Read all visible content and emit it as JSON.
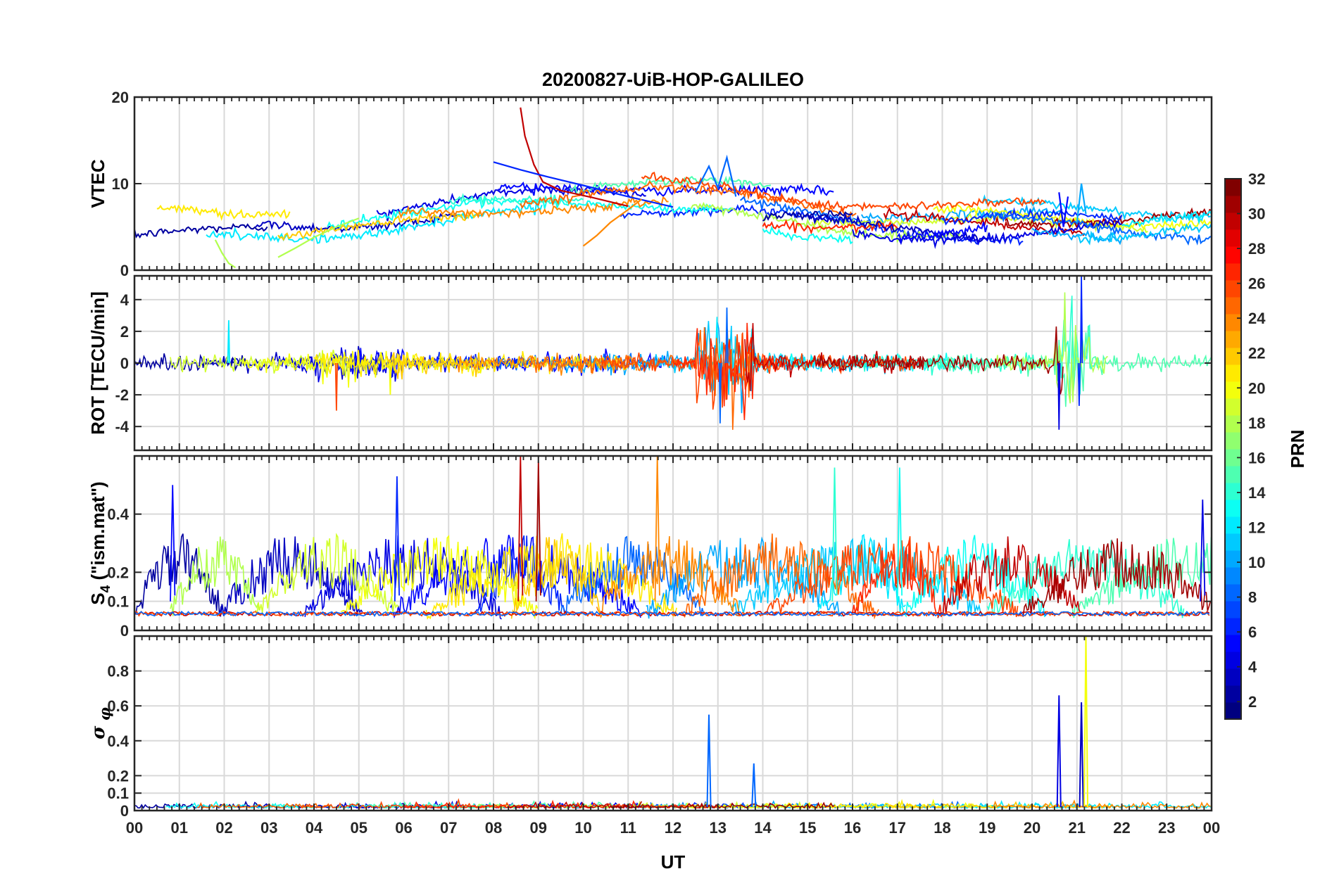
{
  "chart_data": {
    "type": "line",
    "title": "20200827-UiB-HOP-GALILEO",
    "xlabel": "UT",
    "x_ticks": [
      "00",
      "01",
      "02",
      "03",
      "04",
      "05",
      "06",
      "07",
      "08",
      "09",
      "10",
      "11",
      "12",
      "13",
      "14",
      "15",
      "16",
      "17",
      "18",
      "19",
      "20",
      "21",
      "22",
      "23",
      "00"
    ],
    "xlim": [
      0,
      24
    ],
    "colorbar": {
      "label": "PRN",
      "range": [
        1,
        32
      ],
      "ticks": [
        "2",
        "4",
        "6",
        "8",
        "10",
        "12",
        "14",
        "16",
        "18",
        "20",
        "22",
        "24",
        "26",
        "28",
        "30",
        "32"
      ],
      "colormap": "jet"
    },
    "panels": [
      {
        "name": "VTEC",
        "ylabel": "VTEC",
        "ylim": [
          0,
          20
        ],
        "y_ticks": [
          "0",
          "10",
          "20"
        ],
        "series_approx": [
          {
            "prn": 30,
            "x": [
              8.6,
              8.7,
              8.9,
              9.1,
              9.5,
              10.2,
              11.0
            ],
            "y": [
              18.8,
              15.5,
              12.2,
              10.2,
              9.2,
              8.4,
              7.4
            ]
          },
          {
            "prn": 6,
            "x": [
              8.0,
              8.6,
              9.2,
              10.0,
              11.0,
              12.0
            ],
            "y": [
              12.5,
              11.6,
              10.8,
              9.8,
              8.5,
              7.3
            ]
          },
          {
            "prn": 24,
            "x": [
              10.0,
              10.3,
              10.6,
              11.0,
              11.3
            ],
            "y": [
              2.8,
              4.0,
              5.5,
              7.0,
              8.2
            ]
          },
          {
            "prn": 18,
            "x": [
              1.8,
              1.95,
              2.1,
              2.25
            ],
            "y": [
              3.5,
              2.0,
              0.8,
              0.3
            ]
          },
          {
            "prn": 18,
            "x": [
              3.2,
              3.6,
              4.0,
              4.5,
              5.0
            ],
            "y": [
              1.5,
              2.6,
              3.8,
              5.0,
              6.0
            ]
          },
          {
            "prn": 8,
            "x": [
              12.5,
              12.8,
              13.0,
              13.2,
              13.4
            ],
            "y": [
              9.0,
              12.0,
              9.5,
              13.0,
              8.5
            ]
          },
          {
            "prn": 5,
            "x": [
              20.6,
              20.7,
              20.8
            ],
            "y": [
              9.0,
              5.0,
              8.5
            ]
          },
          {
            "prn": 10,
            "x": [
              21.0,
              21.1,
              21.2
            ],
            "y": [
              5.5,
              10.0,
              6.5
            ]
          }
        ]
      },
      {
        "name": "ROT",
        "ylabel": "ROT [TECU/min]",
        "ylim": [
          -5.5,
          5.5
        ],
        "y_ticks": [
          "-4",
          "-2",
          "0",
          "2",
          "4"
        ],
        "notes": "noisy fluctuations around 0; spikes near 13 UT (±3.5) and 20.5-21.2 UT (-4.2 to 5.5)"
      },
      {
        "name": "S4",
        "ylabel": "S_4 (\"ism.mat\")",
        "ylim": [
          0,
          0.6
        ],
        "y_ticks": [
          "0",
          "0.1",
          "0.2",
          "0.4"
        ],
        "notes": "background near 0.05-0.1 with bursts up to ~0.6 around 8.5-9 UT and 11.6 UT"
      },
      {
        "name": "sigma_phi",
        "ylabel": "σ_φ",
        "ylim": [
          0,
          1.0
        ],
        "y_ticks": [
          "0",
          "0.1",
          "0.2",
          "0.4",
          "0.6",
          "0.8"
        ],
        "peaks": [
          {
            "x": 12.8,
            "y": 0.55,
            "prn": 8
          },
          {
            "x": 13.8,
            "y": 0.27,
            "prn": 8
          },
          {
            "x": 20.6,
            "y": 0.66,
            "prn": 4
          },
          {
            "x": 21.1,
            "y": 0.62,
            "prn": 3
          },
          {
            "x": 21.2,
            "y": 1.0,
            "prn": 20
          }
        ]
      }
    ]
  }
}
